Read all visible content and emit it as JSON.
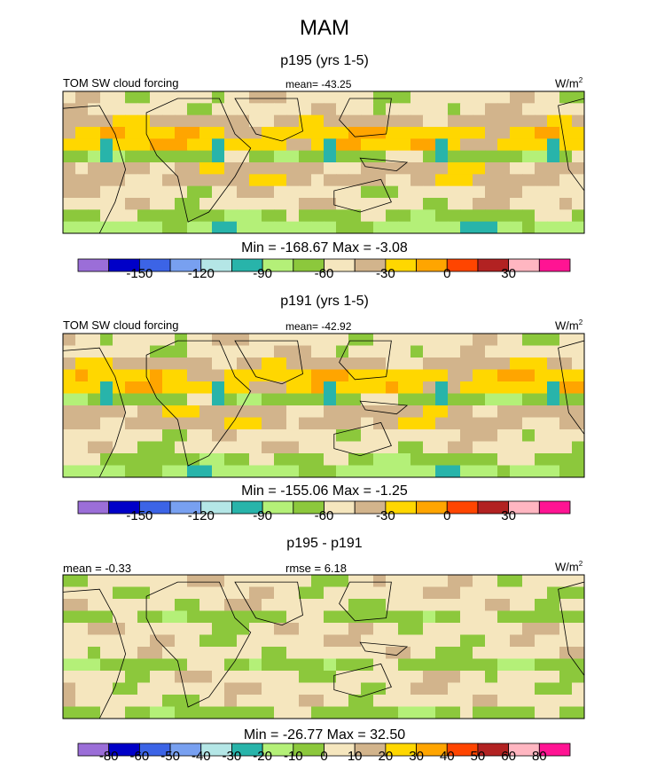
{
  "figure": {
    "title": "MAM"
  },
  "chart_data": [
    {
      "type": "heatmap",
      "title": "p195 (yrs 1-5)",
      "left_label": "TOM SW cloud forcing",
      "center_label": "mean= -43.25",
      "units_base": "W/m",
      "units_exp": "2",
      "minmax_label": "Min = -168.67 Max =  -3.08",
      "stats": {
        "mean": -43.25,
        "min": -168.67,
        "max": -3.08
      },
      "colorbar": {
        "colors": [
          "#9b6ed8",
          "#0000c8",
          "#3c64e6",
          "#78a0f0",
          "#b4e6e6",
          "#28b4aa",
          "#b4f078",
          "#8cc83c",
          "#f5e6be",
          "#d2b48c",
          "#ffd700",
          "#ffa500",
          "#ff4500",
          "#b22222",
          "#ffb6c1",
          "#ff1493"
        ],
        "tick_labels": [
          "-150",
          "-120",
          "-90",
          "-60",
          "-30",
          "0",
          "30"
        ],
        "tick_positions": [
          2,
          4,
          6,
          8,
          10,
          12,
          14
        ]
      },
      "field": {
        "zonal_levels": [
          8,
          8,
          9,
          10,
          10,
          7,
          9,
          9,
          8,
          8,
          7,
          6
        ]
      }
    },
    {
      "type": "heatmap",
      "title": "p191 (yrs 1-5)",
      "left_label": "TOM SW cloud forcing",
      "center_label": "mean= -42.92",
      "units_base": "W/m",
      "units_exp": "2",
      "minmax_label": "Min = -155.06 Max =  -1.25",
      "stats": {
        "mean": -42.92,
        "min": -155.06,
        "max": -1.25
      },
      "colorbar": {
        "colors": [
          "#9b6ed8",
          "#0000c8",
          "#3c64e6",
          "#78a0f0",
          "#b4e6e6",
          "#28b4aa",
          "#b4f078",
          "#8cc83c",
          "#f5e6be",
          "#d2b48c",
          "#ffd700",
          "#ffa500",
          "#ff4500",
          "#b22222",
          "#ffb6c1",
          "#ff1493"
        ],
        "tick_labels": [
          "-150",
          "-120",
          "-90",
          "-60",
          "-30",
          "0",
          "30"
        ],
        "tick_positions": [
          2,
          4,
          6,
          8,
          10,
          12,
          14
        ]
      },
      "field": {
        "zonal_levels": [
          8,
          8,
          9,
          10,
          10,
          7,
          9,
          9,
          8,
          8,
          7,
          6
        ]
      }
    },
    {
      "type": "heatmap",
      "title": "p195 - p191",
      "left_label": "mean =  -0.33",
      "center_label": "rmse =   6.18",
      "units_base": "W/m",
      "units_exp": "2",
      "minmax_label": "Min = -26.77 Max =  32.50",
      "stats": {
        "mean": -0.33,
        "rmse": 6.18,
        "min": -26.77,
        "max": 32.5
      },
      "colorbar": {
        "colors": [
          "#9b6ed8",
          "#0000c8",
          "#3c64e6",
          "#78a0f0",
          "#b4e6e6",
          "#28b4aa",
          "#b4f078",
          "#8cc83c",
          "#f5e6be",
          "#d2b48c",
          "#ffd700",
          "#ffa500",
          "#ff4500",
          "#b22222",
          "#ffb6c1",
          "#ff1493"
        ],
        "tick_labels": [
          "-80",
          "-60",
          "-50",
          "-40",
          "-30",
          "-20",
          "-10",
          "0",
          "10",
          "20",
          "30",
          "40",
          "50",
          "60",
          "80"
        ],
        "tick_positions": [
          1,
          2,
          3,
          4,
          5,
          6,
          7,
          8,
          9,
          10,
          11,
          12,
          13,
          14,
          15
        ]
      },
      "field": {
        "zonal_levels": [
          8,
          8,
          8,
          7,
          8,
          8,
          8,
          7,
          8,
          8,
          8,
          7
        ]
      }
    }
  ]
}
